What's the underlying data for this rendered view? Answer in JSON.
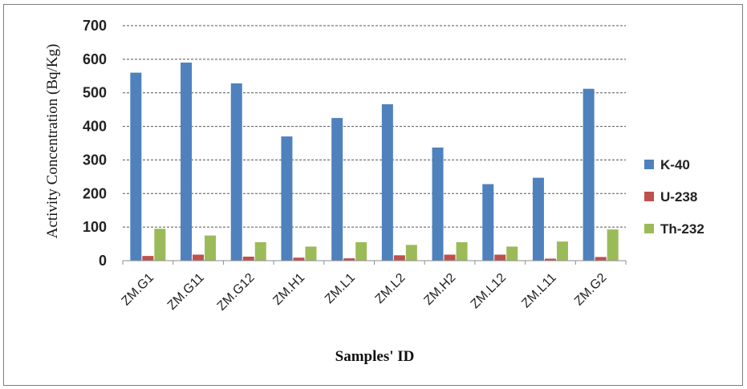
{
  "chart_data": {
    "type": "bar",
    "xlabel": "Samples' ID",
    "ylabel": "Activity Concentration (Bq/Kg)",
    "ylim": [
      0,
      700
    ],
    "yticks": [
      "0",
      "100",
      "200",
      "300",
      "400",
      "500",
      "600",
      "700"
    ],
    "grid": "horizontal dashed",
    "legend_position": "right",
    "categories": [
      "ZM.G1",
      "ZM.G11",
      "ZM.G12",
      "ZM.H1",
      "ZM.L1",
      "ZM.L2",
      "ZM.H2",
      "ZM.L12",
      "ZM.L11",
      "ZM.G2"
    ],
    "series": [
      {
        "name": "K-40",
        "color": "#4f81bd",
        "values": [
          560,
          590,
          528,
          370,
          425,
          466,
          337,
          228,
          247,
          512
        ]
      },
      {
        "name": "U-238",
        "color": "#c0504d",
        "values": [
          14,
          18,
          12,
          9,
          7,
          16,
          18,
          18,
          6,
          11
        ]
      },
      {
        "name": "Th-232",
        "color": "#9bbb59",
        "values": [
          95,
          75,
          55,
          42,
          55,
          47,
          55,
          42,
          57,
          93
        ]
      }
    ]
  }
}
